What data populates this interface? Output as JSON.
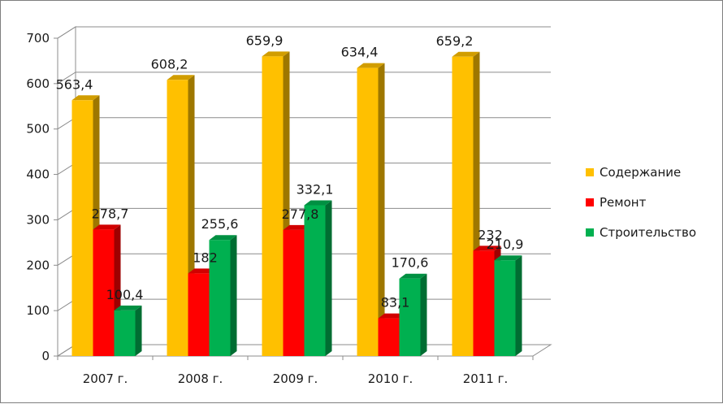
{
  "chart_data": {
    "type": "bar",
    "style": "3d-clustered-column",
    "categories": [
      "2007 г.",
      "2008 г.",
      "2009 г.",
      "2010 г.",
      "2011 г."
    ],
    "series": [
      {
        "name": "Содержание",
        "color": "#FFC000",
        "values": [
          563.4,
          608.2,
          659.9,
          634.4,
          659.2
        ],
        "labels": [
          "563,4",
          "608,2",
          "659,9",
          "634,4",
          "659,2"
        ]
      },
      {
        "name": "Ремонт",
        "color": "#FF0000",
        "values": [
          278.7,
          182,
          277.8,
          83.1,
          232
        ],
        "labels": [
          "278,7",
          "182",
          "277,8",
          "83,1",
          "232"
        ]
      },
      {
        "name": "Строительство",
        "color": "#00B050",
        "values": [
          100.4,
          255.6,
          332.1,
          170.6,
          210.9
        ],
        "labels": [
          "100,4",
          "255,6",
          "332,1",
          "170,6",
          "210,9"
        ]
      }
    ],
    "yticks": [
      "0",
      "100",
      "200",
      "300",
      "400",
      "500",
      "600",
      "700"
    ],
    "ylim": [
      0,
      700
    ],
    "grid": true,
    "legend_position": "right"
  }
}
